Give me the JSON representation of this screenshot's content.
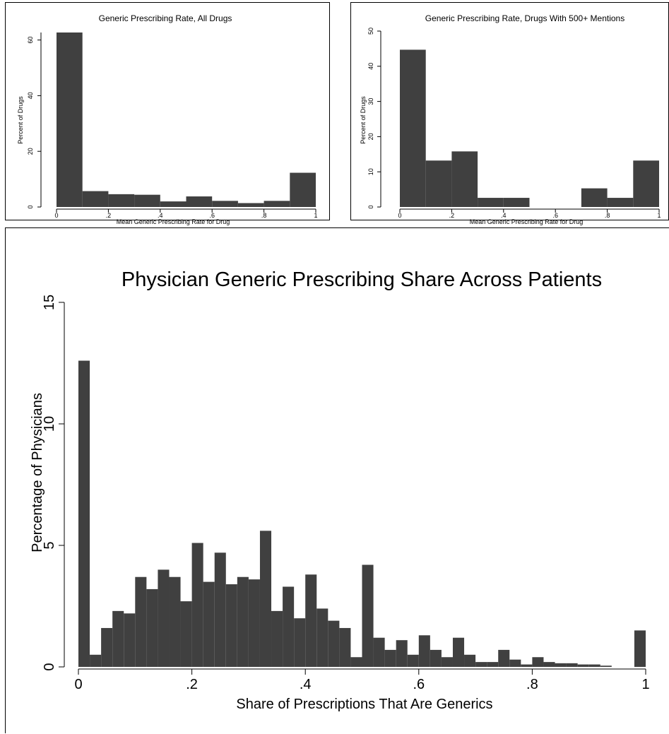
{
  "bar_color": "#404040",
  "chart_data": [
    {
      "type": "bar",
      "title": "Generic Prescribing Rate, All Drugs",
      "xlabel": "Mean Generic Prescribing Rate for Drug",
      "ylabel": "Percent of Drugs",
      "bin_start": 0.0,
      "bin_width": 0.1,
      "values": [
        62.7,
        5.7,
        4.6,
        4.4,
        2.0,
        3.8,
        2.2,
        1.4,
        2.2,
        12.3
      ],
      "xlim": [
        0,
        1
      ],
      "ylim": [
        0,
        62.7
      ],
      "x_ticks": [
        {
          "value": 0,
          "label": "0"
        },
        {
          "value": 0.2,
          "label": ".2"
        },
        {
          "value": 0.4,
          "label": ".4"
        },
        {
          "value": 0.6,
          "label": ".6"
        },
        {
          "value": 0.8,
          "label": ".8"
        },
        {
          "value": 1,
          "label": "1"
        }
      ],
      "y_ticks": [
        {
          "value": 0,
          "label": "0"
        },
        {
          "value": 20,
          "label": "20"
        },
        {
          "value": 40,
          "label": "40"
        },
        {
          "value": 60,
          "label": "60"
        }
      ],
      "grid": false
    },
    {
      "type": "bar",
      "title": "Generic Prescribing Rate, Drugs With 500+ Mentions",
      "xlabel": "Mean Generic Prescribing Rate for Drug",
      "ylabel": "Percent of Drugs",
      "bin_start": 0.0,
      "bin_width": 0.1,
      "values": [
        44.7,
        13.2,
        15.8,
        2.6,
        2.6,
        0,
        0,
        5.3,
        2.6,
        13.2
      ],
      "xlim": [
        0,
        1
      ],
      "ylim": [
        0,
        50
      ],
      "x_ticks": [
        {
          "value": 0,
          "label": "0"
        },
        {
          "value": 0.2,
          "label": ".2"
        },
        {
          "value": 0.4,
          "label": ".4"
        },
        {
          "value": 0.6,
          "label": ".6"
        },
        {
          "value": 0.8,
          "label": ".8"
        },
        {
          "value": 1,
          "label": "1"
        }
      ],
      "y_ticks": [
        {
          "value": 0,
          "label": "0"
        },
        {
          "value": 10,
          "label": "10"
        },
        {
          "value": 20,
          "label": "20"
        },
        {
          "value": 30,
          "label": "30"
        },
        {
          "value": 40,
          "label": "40"
        },
        {
          "value": 50,
          "label": "50"
        }
      ],
      "grid": false
    },
    {
      "type": "bar",
      "title": "Physician Generic Prescribing Share Across Patients",
      "xlabel": "Share of Prescriptions That Are Generics",
      "ylabel": "Percentage of Physicians",
      "bin_start": 0.0,
      "bin_width": 0.02,
      "values": [
        12.6,
        0.5,
        1.6,
        2.3,
        2.2,
        3.7,
        3.2,
        4.0,
        3.7,
        2.7,
        5.1,
        3.5,
        4.7,
        3.4,
        3.7,
        3.6,
        5.6,
        2.3,
        3.3,
        2.0,
        3.8,
        2.4,
        1.9,
        1.6,
        0.4,
        4.2,
        1.2,
        0.7,
        1.1,
        0.5,
        1.3,
        0.7,
        0.4,
        1.2,
        0.5,
        0.2,
        0.2,
        0.7,
        0.3,
        0.1,
        0.4,
        0.2,
        0.15,
        0.15,
        0.1,
        0.1,
        0.05,
        0,
        0,
        1.5
      ],
      "xlim": [
        0,
        1
      ],
      "ylim": [
        0,
        15
      ],
      "x_ticks": [
        {
          "value": 0,
          "label": "0"
        },
        {
          "value": 0.2,
          "label": ".2"
        },
        {
          "value": 0.4,
          "label": ".4"
        },
        {
          "value": 0.6,
          "label": ".6"
        },
        {
          "value": 0.8,
          "label": ".8"
        },
        {
          "value": 1,
          "label": "1"
        }
      ],
      "y_ticks": [
        {
          "value": 0,
          "label": "0"
        },
        {
          "value": 5,
          "label": "5"
        },
        {
          "value": 10,
          "label": "10"
        },
        {
          "value": 15,
          "label": "15"
        }
      ],
      "grid": false
    }
  ]
}
